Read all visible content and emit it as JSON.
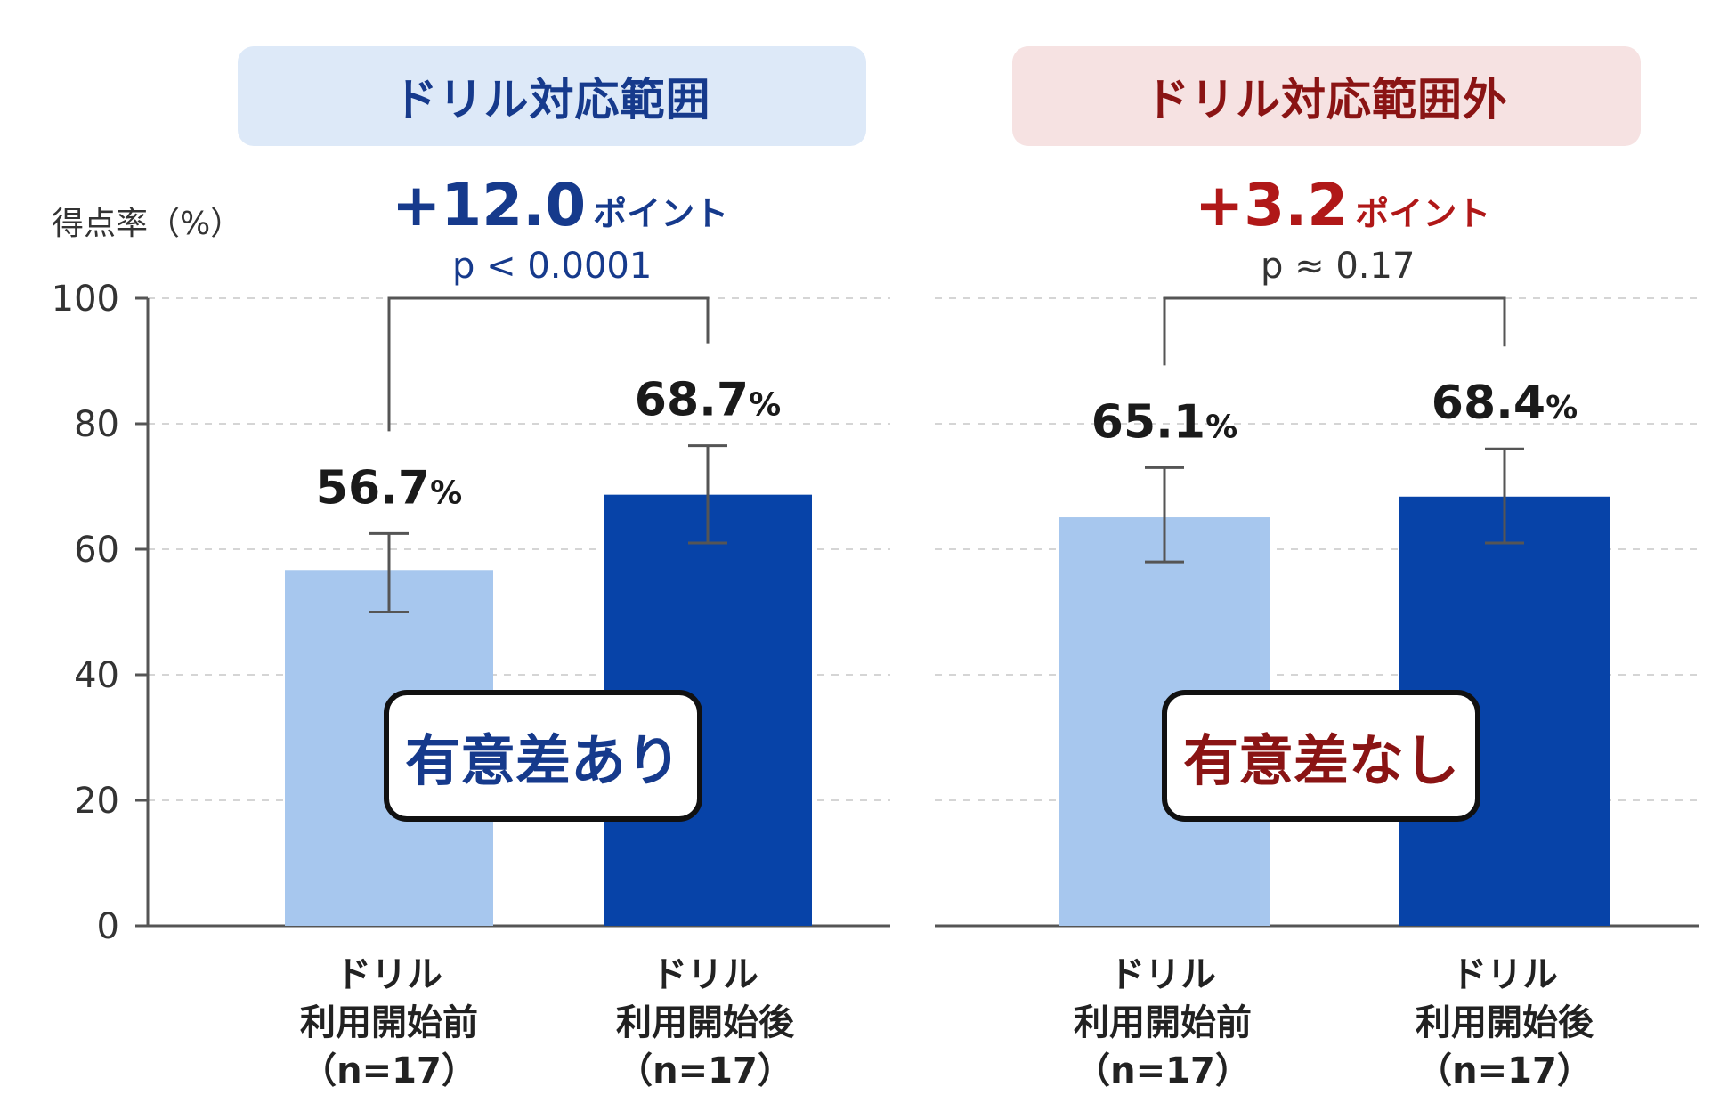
{
  "colors": {
    "before": "#a7c7ee",
    "after": "#0743a8",
    "blue_text": "#163a8c",
    "red_text": "#8a1414",
    "grid": "#d5d5d5",
    "axis": "#555555"
  },
  "y_axis_label": "得点率（%）",
  "panels": [
    {
      "header": "ドリル対応範囲",
      "delta": "+12.0",
      "delta_unit": "ポイント",
      "p_value": "p < 0.0001",
      "significance": "有意差あり",
      "x_labels": [
        {
          "line1": "ドリル",
          "line2": "利用開始前",
          "line3": "（n=17）"
        },
        {
          "line1": "ドリル",
          "line2": "利用開始後",
          "line3": "（n=17）"
        }
      ]
    },
    {
      "header": "ドリル対応範囲外",
      "delta": "+3.2",
      "delta_unit": "ポイント",
      "p_value": "p ≈ 0.17",
      "significance": "有意差なし",
      "x_labels": [
        {
          "line1": "ドリル",
          "line2": "利用開始前",
          "line3": "（n=17）"
        },
        {
          "line1": "ドリル",
          "line2": "利用開始後",
          "line3": "（n=17）"
        }
      ]
    }
  ],
  "chart_data": [
    {
      "type": "bar",
      "title": "ドリル対応範囲",
      "ylabel": "得点率（%）",
      "ylim": [
        0,
        100
      ],
      "yticks": [
        0,
        20,
        40,
        60,
        80,
        100
      ],
      "grid": true,
      "categories": [
        "ドリル利用開始前（n=17）",
        "ドリル利用開始後（n=17）"
      ],
      "values": [
        56.7,
        68.7
      ],
      "value_labels": [
        "56.7%",
        "68.7%"
      ],
      "error_low": [
        50.0,
        61.0
      ],
      "error_high": [
        62.5,
        76.5
      ],
      "annotation": "+12.0 ポイント p < 0.0001"
    },
    {
      "type": "bar",
      "title": "ドリル対応範囲外",
      "ylabel": "得点率（%）",
      "ylim": [
        0,
        100
      ],
      "yticks": [
        0,
        20,
        40,
        60,
        80,
        100
      ],
      "grid": true,
      "categories": [
        "ドリル利用開始前（n=17）",
        "ドリル利用開始後（n=17）"
      ],
      "values": [
        65.1,
        68.4
      ],
      "value_labels": [
        "65.1%",
        "68.4%"
      ],
      "error_low": [
        58.0,
        61.0
      ],
      "error_high": [
        73.0,
        76.0
      ],
      "annotation": "+3.2 ポイント p ≈ 0.17"
    }
  ]
}
